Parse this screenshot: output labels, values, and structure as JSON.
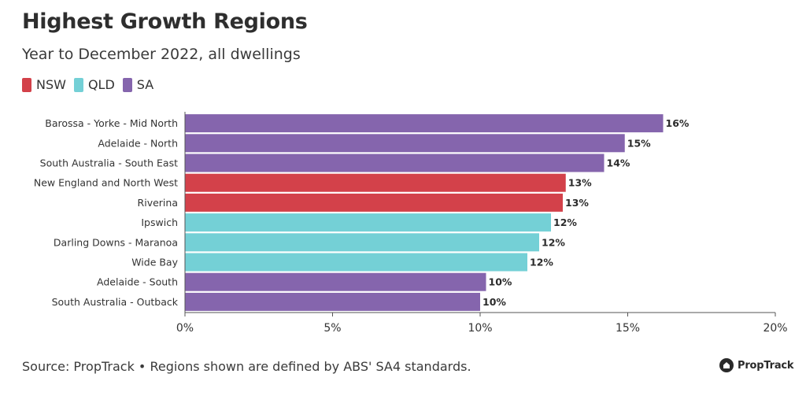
{
  "title": "Highest Growth Regions",
  "subtitle": "Year to December 2022, all dwellings",
  "legend": [
    {
      "label": "NSW",
      "color": "#d3414a"
    },
    {
      "label": "QLD",
      "color": "#74d0d6"
    },
    {
      "label": "SA",
      "color": "#8565ad"
    }
  ],
  "source": "Source: PropTrack • Regions shown are defined by ABS' SA4 standards.",
  "logo": {
    "text": "PropTrack",
    "icon": "house-icon"
  },
  "chart_data": {
    "type": "bar",
    "orientation": "horizontal",
    "categories": [
      "Barossa - Yorke - Mid North",
      "Adelaide - North",
      "South Australia - South East",
      "New England and North West",
      "Riverina",
      "Ipswich",
      "Darling Downs - Maranoa",
      "Wide Bay",
      "Adelaide - South",
      "South Australia - Outback"
    ],
    "values": [
      16.2,
      14.9,
      14.2,
      12.9,
      12.8,
      12.4,
      12.0,
      11.6,
      10.2,
      10.0
    ],
    "value_labels": [
      "16%",
      "15%",
      "14%",
      "13%",
      "13%",
      "12%",
      "12%",
      "12%",
      "10%",
      "10%"
    ],
    "groups": [
      "SA",
      "SA",
      "SA",
      "NSW",
      "NSW",
      "QLD",
      "QLD",
      "QLD",
      "SA",
      "SA"
    ],
    "xlim": [
      0,
      20
    ],
    "xticks": [
      0,
      5,
      10,
      15,
      20
    ],
    "xtick_labels": [
      "0%",
      "5%",
      "10%",
      "15%",
      "20%"
    ],
    "grid": false,
    "legend_position": "top-left"
  }
}
